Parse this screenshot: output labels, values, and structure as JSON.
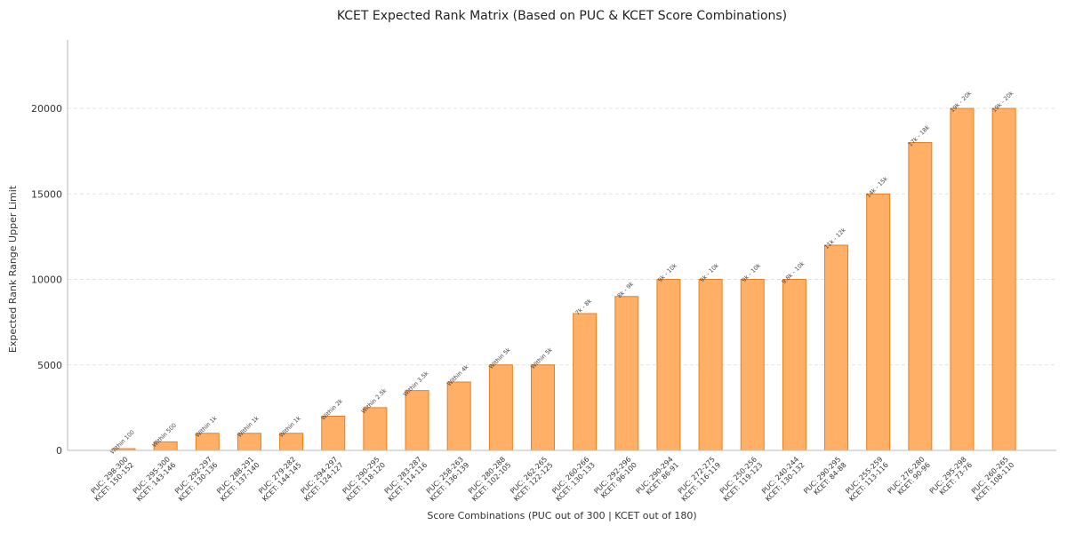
{
  "chart_data": {
    "type": "bar",
    "title": "KCET Expected Rank Matrix (Based on PUC & KCET Score Combinations)",
    "xlabel": "Score Combinations (PUC out of 300 | KCET out of 180)",
    "ylabel": "Expected Rank Range Upper Limit",
    "ylim": [
      0,
      24000
    ],
    "yticks": [
      0,
      5000,
      10000,
      15000,
      20000
    ],
    "grid": "horizontal",
    "bar_color": "#ffb066",
    "bar_edge_color": "#e8801a",
    "categories": [
      [
        "PUC: 298-300",
        "KCET: 150-152"
      ],
      [
        "PUC: 295-300",
        "KCET: 143-146"
      ],
      [
        "PUC: 292-297",
        "KCET: 130-136"
      ],
      [
        "PUC: 288-291",
        "KCET: 137-140"
      ],
      [
        "PUC: 279-282",
        "KCET: 144-145"
      ],
      [
        "PUC: 294-297",
        "KCET: 124-127"
      ],
      [
        "PUC: 290-295",
        "KCET: 118-120"
      ],
      [
        "PUC: 283-287",
        "KCET: 114-116"
      ],
      [
        "PUC: 258-263",
        "KCET: 136-139"
      ],
      [
        "PUC: 280-288",
        "KCET: 102-105"
      ],
      [
        "PUC: 262-265",
        "KCET: 122-125"
      ],
      [
        "PUC: 260-266",
        "KCET: 130-133"
      ],
      [
        "PUC: 292-296",
        "KCET: 96-100"
      ],
      [
        "PUC: 290-294",
        "KCET: 86-91"
      ],
      [
        "PUC: 272-275",
        "KCET: 116-119"
      ],
      [
        "PUC: 250-256",
        "KCET: 119-123"
      ],
      [
        "PUC: 240-244",
        "KCET: 130-132"
      ],
      [
        "PUC: 290-295",
        "KCET: 84-88"
      ],
      [
        "PUC: 255-259",
        "KCET: 113-116"
      ],
      [
        "PUC: 276-280",
        "KCET: 90-96"
      ],
      [
        "PUC: 295-298",
        "KCET: 73-76"
      ],
      [
        "PUC: 260-265",
        "KCET: 108-110"
      ]
    ],
    "values": [
      100,
      500,
      1000,
      1000,
      1000,
      2000,
      2500,
      3500,
      4000,
      5000,
      5000,
      8000,
      9000,
      10000,
      10000,
      10000,
      10000,
      12000,
      15000,
      18000,
      20000,
      20000
    ],
    "data_labels": [
      "Within 100",
      "Within 500",
      "Within 1k",
      "Within 1k",
      "Within 1k",
      "Within 2k",
      "Within 2.5k",
      "Within 3.5k",
      "Within 4k",
      "Within 5k",
      "Within 5k",
      "7k - 8k",
      "8k - 9k",
      "9k - 10k",
      "9k - 10k",
      "9k - 10k",
      "9.8k - 10k",
      "11k - 12k",
      "14k - 15k",
      "17k - 18k",
      "19k - 20k",
      "19k - 20k"
    ]
  }
}
